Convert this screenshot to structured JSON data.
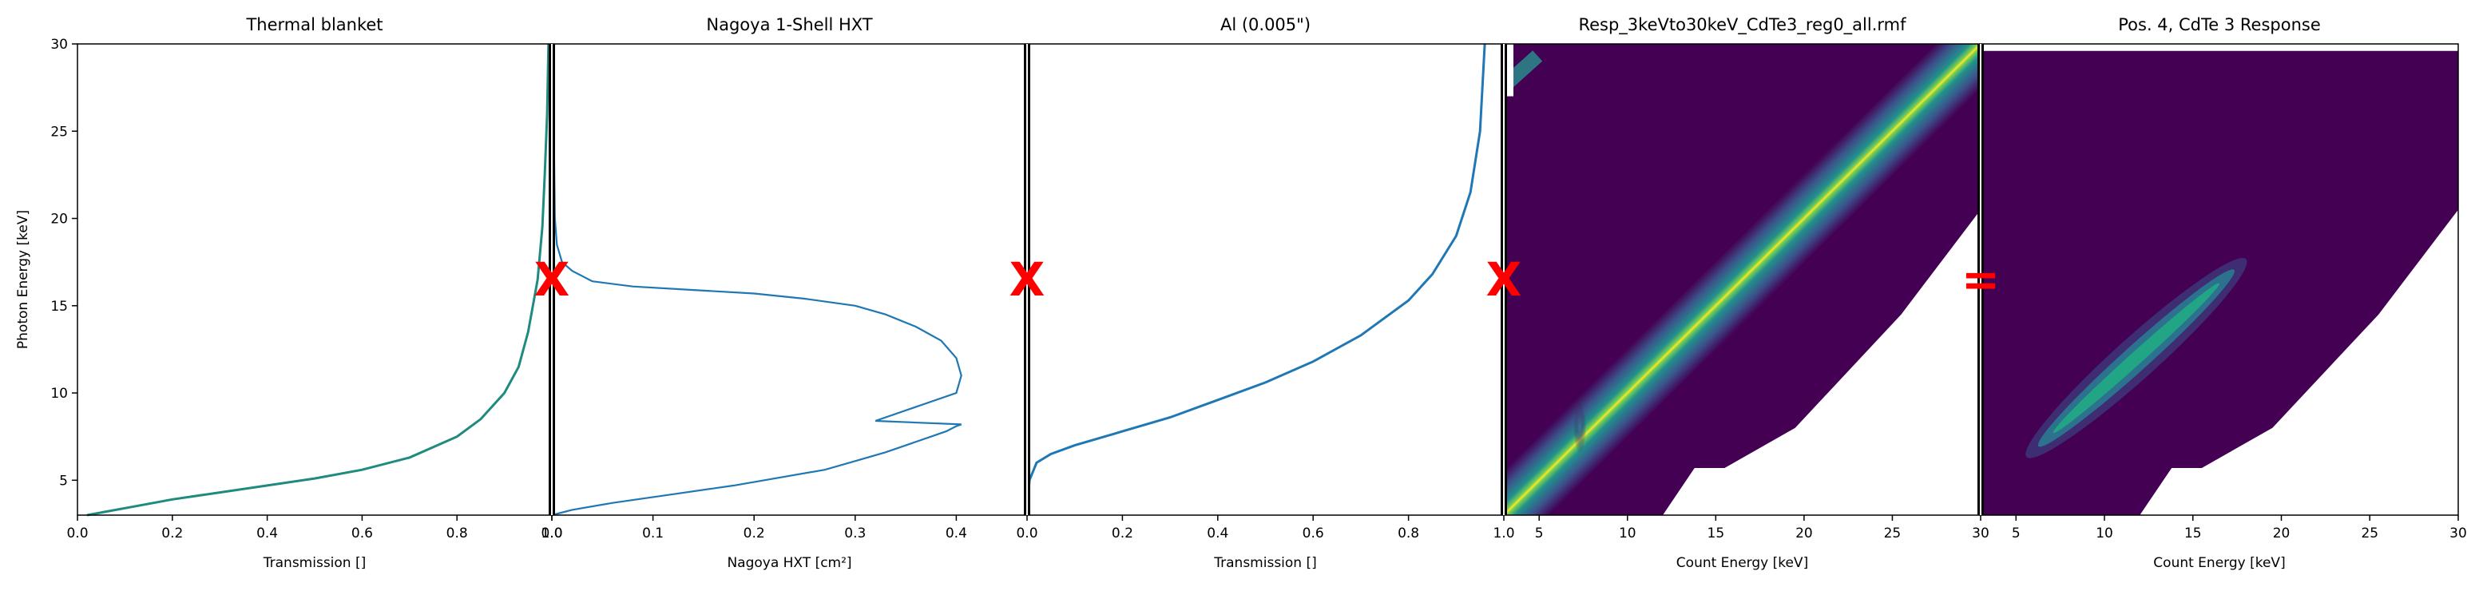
{
  "figure": {
    "ylabel": "Photon Energy [keV]",
    "ylim": [
      3,
      30
    ],
    "yticks": [
      5,
      10,
      15,
      20,
      25,
      30
    ],
    "operators": [
      "X",
      "X",
      "X",
      "="
    ],
    "operator_color": "#ff0000"
  },
  "chart_data": [
    {
      "type": "line",
      "title": "Thermal blanket",
      "xlabel": "Transmission []",
      "xlim": [
        0,
        1
      ],
      "xticks": [
        "0.0",
        "0.2",
        "0.4",
        "0.6",
        "0.8",
        "1.0"
      ],
      "ylim": [
        3,
        30
      ],
      "color": "#1f8a7f",
      "series": [
        {
          "x": [
            0.02,
            0.1,
            0.2,
            0.3,
            0.4,
            0.5,
            0.6,
            0.7,
            0.8,
            0.85,
            0.9,
            0.93,
            0.95,
            0.97,
            0.98,
            0.985,
            0.99,
            0.993
          ],
          "y": [
            3.0,
            3.4,
            3.9,
            4.3,
            4.7,
            5.1,
            5.6,
            6.3,
            7.5,
            8.5,
            10.0,
            11.5,
            13.5,
            16.5,
            19.5,
            22.5,
            26.0,
            30.0
          ]
        }
      ]
    },
    {
      "type": "line",
      "title": "Nagoya 1-Shell HXT",
      "xlabel": "Nagoya HXT [cm²]",
      "xlim": [
        0,
        0.47
      ],
      "xticks": [
        "0.0",
        "0.1",
        "0.2",
        "0.3",
        "0.4"
      ],
      "ylim": [
        3,
        30
      ],
      "color": "#1f77b4",
      "series": [
        {
          "x": [
            0.0,
            0.02,
            0.06,
            0.12,
            0.18,
            0.23,
            0.27,
            0.3,
            0.33,
            0.355,
            0.375,
            0.39,
            0.4,
            0.405,
            0.32,
            0.4,
            0.405,
            0.4,
            0.385,
            0.36,
            0.33,
            0.3,
            0.25,
            0.2,
            0.14,
            0.08,
            0.04,
            0.02,
            0.01,
            0.005,
            0.003,
            0.002,
            0.002
          ],
          "y": [
            3.0,
            3.3,
            3.7,
            4.2,
            4.7,
            5.2,
            5.6,
            6.1,
            6.6,
            7.1,
            7.5,
            7.8,
            8.1,
            8.2,
            8.4,
            10.0,
            11.0,
            12.0,
            13.0,
            13.8,
            14.5,
            15.0,
            15.4,
            15.7,
            15.9,
            16.1,
            16.4,
            17.0,
            17.5,
            18.5,
            20.0,
            25.0,
            30.0
          ]
        }
      ]
    },
    {
      "type": "line",
      "title": "Al (0.005\")",
      "xlabel": "Transmission []",
      "xlim": [
        0,
        1
      ],
      "xticks": [
        "0.0",
        "0.2",
        "0.4",
        "0.6",
        "0.8",
        "1.0"
      ],
      "ylim": [
        3,
        30
      ],
      "color": "#1f77b4",
      "series": [
        {
          "x": [
            0.0,
            0.005,
            0.02,
            0.05,
            0.1,
            0.2,
            0.3,
            0.4,
            0.5,
            0.6,
            0.7,
            0.8,
            0.85,
            0.9,
            0.93,
            0.95,
            0.96
          ],
          "y": [
            3.0,
            5.0,
            6.0,
            6.5,
            7.0,
            7.8,
            8.6,
            9.6,
            10.6,
            11.8,
            13.3,
            15.3,
            16.8,
            19.0,
            21.5,
            25.0,
            30.0
          ]
        }
      ]
    },
    {
      "type": "heatmap",
      "title": "Resp_3keVto30keV_CdTe3_reg0_all.rmf",
      "xlabel": "Count Energy [keV]",
      "xlim": [
        3,
        30
      ],
      "xticks": [
        5,
        10,
        15,
        20,
        25,
        30
      ],
      "ylim": [
        3,
        30
      ],
      "background_color": "#440154",
      "features": [
        "diagonal photopeak band",
        "escape streak near 7 keV",
        "upper-left artifact near 27–30 keV"
      ]
    },
    {
      "type": "heatmap",
      "title": "Pos. 4, CdTe 3 Response",
      "xlabel": "Count Energy [keV]",
      "xlim": [
        3,
        30
      ],
      "xticks": [
        5,
        10,
        15,
        20,
        25,
        30
      ],
      "ylim": [
        3,
        30
      ],
      "background_color": "#440154",
      "features": [
        "diagonal response peak from about 6 to 17 keV"
      ]
    }
  ]
}
